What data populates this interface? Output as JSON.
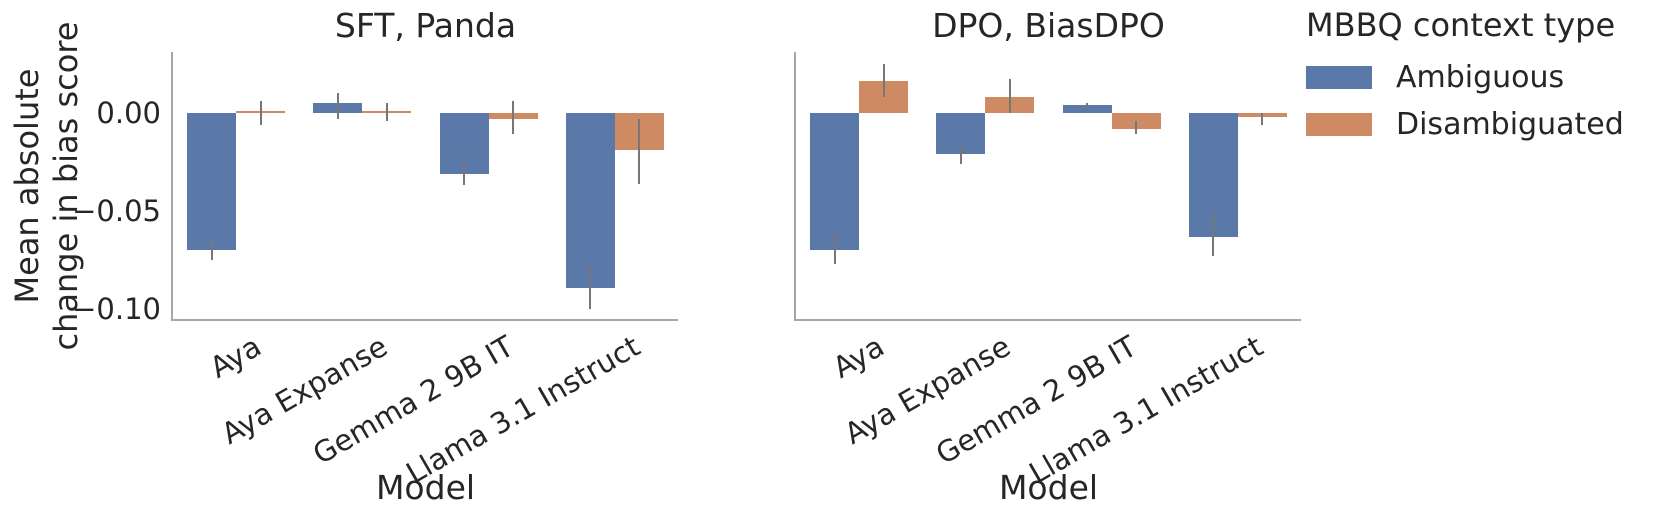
{
  "figure": {
    "ylabel": "Mean absolute\nchange in bias score",
    "xlabel": "Model"
  },
  "legend": {
    "title": "MBBQ context type",
    "entries": [
      {
        "label": "Ambiguous",
        "color": "#5a78a8"
      },
      {
        "label": "Disambiguated",
        "color": "#cd8a63"
      }
    ]
  },
  "colors": {
    "ambiguous": "#5a78a8",
    "disambiguated": "#cd8a63",
    "error_bar": "#777777",
    "spine": "#a6a6a6",
    "text": "#262626"
  },
  "chart_data": [
    {
      "type": "bar",
      "title": "SFT, Panda",
      "xlabel": "Model",
      "ylabel": "Mean absolute change in bias score",
      "categories": [
        "Aya",
        "Aya Expanse",
        "Gemma 2 9B IT",
        "Llama 3.1 Instruct"
      ],
      "series": [
        {
          "name": "Ambiguous",
          "color": "#5a78a8",
          "values": [
            -0.07,
            0.005,
            -0.031,
            -0.089
          ],
          "errors": [
            [
              -0.075,
              -0.065
            ],
            [
              -0.003,
              0.01
            ],
            [
              -0.037,
              -0.022
            ],
            [
              -0.1,
              -0.078
            ]
          ]
        },
        {
          "name": "Disambiguated",
          "color": "#cd8a63",
          "values": [
            0.0,
            0.0,
            -0.003,
            -0.019
          ],
          "errors": [
            [
              -0.006,
              0.006
            ],
            [
              -0.004,
              0.005
            ],
            [
              -0.011,
              0.006
            ],
            [
              -0.036,
              -0.003
            ]
          ]
        }
      ],
      "ylim": [
        -0.105,
        0.031
      ],
      "yticks": [
        {
          "value": 0,
          "label": "0.00"
        },
        {
          "value": -0.05,
          "label": "−0.05"
        },
        {
          "value": -0.1,
          "label": "−0.10"
        }
      ],
      "grid": false,
      "legend_position": "outside-top-right"
    },
    {
      "type": "bar",
      "title": "DPO, BiasDPO",
      "xlabel": "Model",
      "ylabel": "Mean absolute change in bias score",
      "categories": [
        "Aya",
        "Aya Expanse",
        "Gemma 2 9B IT",
        "Llama 3.1 Instruct"
      ],
      "series": [
        {
          "name": "Ambiguous",
          "color": "#5a78a8",
          "values": [
            -0.07,
            -0.021,
            0.004,
            -0.063
          ],
          "errors": [
            [
              -0.077,
              -0.061
            ],
            [
              -0.026,
              -0.017
            ],
            [
              0.002,
              0.005
            ],
            [
              -0.073,
              -0.051
            ]
          ]
        },
        {
          "name": "Disambiguated",
          "color": "#cd8a63",
          "values": [
            0.016,
            0.008,
            -0.008,
            -0.002
          ],
          "errors": [
            [
              0.008,
              0.025
            ],
            [
              0.0,
              0.017
            ],
            [
              -0.011,
              -0.004
            ],
            [
              -0.006,
              0.0
            ]
          ]
        }
      ],
      "ylim": [
        -0.105,
        0.031
      ],
      "yticks": [
        {
          "value": 0,
          "label": "0.00"
        },
        {
          "value": -0.05,
          "label": "−0.05"
        },
        {
          "value": -0.1,
          "label": "−0.10"
        }
      ],
      "grid": false,
      "legend_position": "outside-top-right"
    }
  ]
}
